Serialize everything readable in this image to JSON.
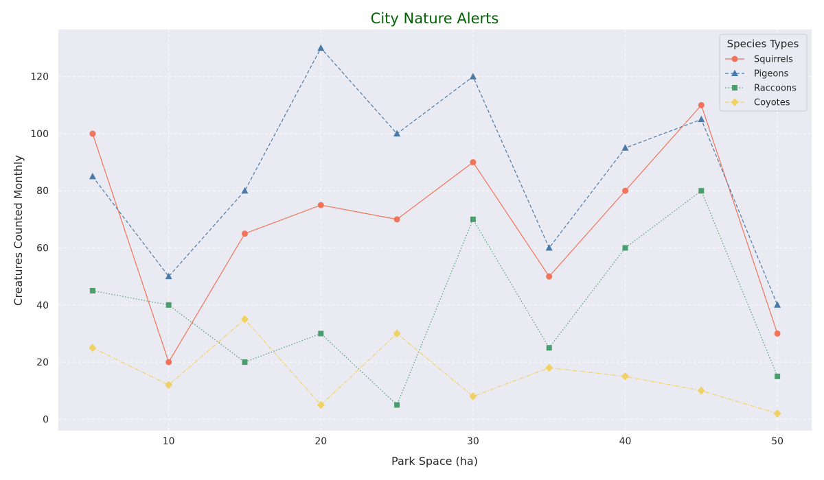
{
  "chart_data": {
    "type": "line",
    "title": "City Nature Alerts",
    "title_color": "#006400",
    "xlabel": "Park Space (ha)",
    "ylabel": "Creatures Counted Monthly",
    "x": [
      5,
      10,
      15,
      20,
      25,
      30,
      35,
      40,
      45,
      50
    ],
    "xlim": [
      2.75,
      52.25
    ],
    "ylim": [
      -4,
      136.5
    ],
    "xticks": [
      10,
      20,
      30,
      40,
      50
    ],
    "yticks": [
      0,
      20,
      40,
      60,
      80,
      100,
      120
    ],
    "grid": true,
    "grid_style": "dashed",
    "background": "#eaeaf2",
    "legend": {
      "title": "Species Types",
      "position": "top-right"
    },
    "series": [
      {
        "name": "Squirrels",
        "color": "#f0735a",
        "marker": "circle",
        "dash": "solid",
        "values": [
          100,
          20,
          65,
          75,
          70,
          90,
          50,
          80,
          110,
          30
        ]
      },
      {
        "name": "Pigeons",
        "color": "#4a7aa8",
        "marker": "triangle",
        "dash": "dashed",
        "values": [
          85,
          50,
          80,
          130,
          100,
          120,
          60,
          95,
          105,
          40
        ]
      },
      {
        "name": "Raccoons",
        "color": "#4a9e6e",
        "marker": "square",
        "dash": "dotted",
        "values": [
          45,
          40,
          20,
          30,
          5,
          70,
          25,
          60,
          80,
          15
        ]
      },
      {
        "name": "Coyotes",
        "color": "#f0d264",
        "marker": "diamond",
        "dash": "dashdot",
        "values": [
          25,
          12,
          35,
          5,
          30,
          8,
          18,
          15,
          10,
          2
        ]
      }
    ]
  }
}
